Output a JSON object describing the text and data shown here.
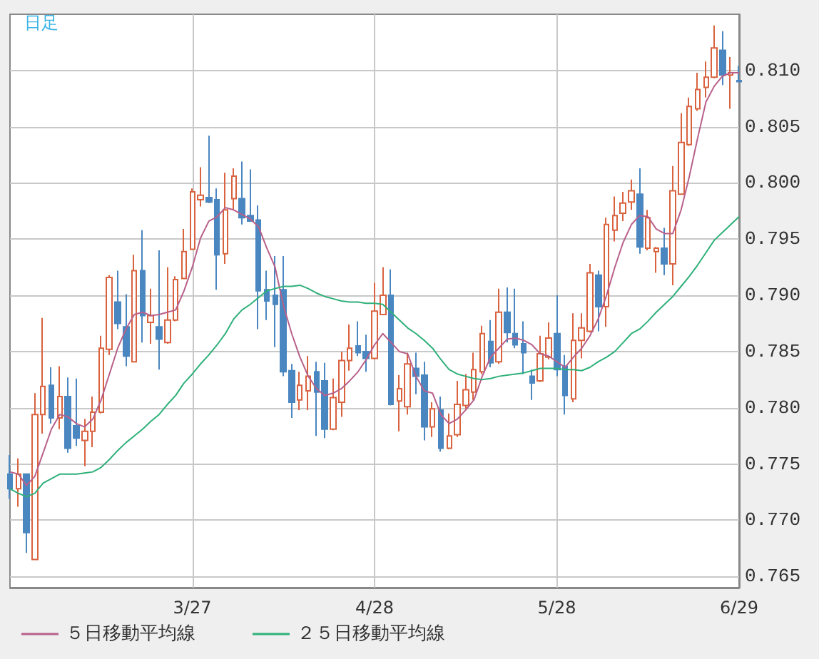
{
  "chart_data": {
    "type": "candlestick",
    "title": "日足",
    "categories": [
      null,
      null,
      null,
      null,
      null,
      null,
      null,
      null,
      null,
      null,
      null,
      null,
      null,
      null,
      null,
      null,
      null,
      null,
      null,
      null,
      null,
      null,
      "3/27",
      null,
      null,
      null,
      null,
      null,
      null,
      null,
      null,
      null,
      null,
      null,
      null,
      null,
      null,
      null,
      null,
      null,
      null,
      null,
      null,
      null,
      "4/28",
      null,
      null,
      null,
      null,
      null,
      null,
      null,
      null,
      null,
      null,
      null,
      null,
      null,
      null,
      null,
      null,
      null,
      null,
      null,
      null,
      null,
      "5/28",
      null,
      null,
      null,
      null,
      null,
      null,
      null,
      null,
      null,
      null,
      null,
      null,
      null,
      null,
      null,
      null,
      null,
      null,
      null,
      null,
      null,
      "6/29"
    ],
    "series": [
      {
        "type": "candlestick",
        "colors": [
          "#4a87c0",
          "#d9623f",
          "#4a87c0",
          "#d9623f",
          "#d9623f",
          "#4a87c0",
          "#d9623f",
          "#4a87c0",
          "#4a87c0",
          "#d9623f",
          "#d9623f",
          "#d9623f",
          "#d9623f",
          "#4a87c0",
          "#4a87c0",
          "#d9623f",
          "#4a87c0",
          "#d9623f",
          "#4a87c0",
          "#d9623f",
          "#d9623f",
          "#d9623f",
          "#d9623f",
          "#d9623f",
          "#4a87c0",
          "#4a87c0",
          "#d9623f",
          "#d9623f",
          "#4a87c0",
          "#4a87c0",
          "#4a87c0",
          "#4a87c0",
          "#4a87c0",
          "#4a87c0",
          "#4a87c0",
          "#d9623f",
          "#d9623f",
          "#4a87c0",
          "#4a87c0",
          "#d9623f",
          "#d9623f",
          "#d9623f",
          "#4a87c0",
          "#4a87c0",
          "#d9623f",
          "#d9623f",
          "#4a87c0",
          "#d9623f",
          "#d9623f",
          "#4a87c0",
          "#4a87c0",
          "#d9623f",
          "#4a87c0",
          "#d9623f",
          "#d9623f",
          "#d9623f",
          "#d9623f",
          "#d9623f",
          "#4a87c0",
          "#d9623f",
          "#4a87c0",
          "#4a87c0",
          "#4a87c0",
          "#4a87c0",
          "#d9623f",
          "#d9623f",
          "#4a87c0",
          "#4a87c0",
          "#d9623f",
          "#d9623f",
          "#d9623f",
          "#4a87c0",
          "#d9623f",
          "#d9623f",
          "#d9623f",
          "#d9623f",
          "#4a87c0",
          "#d9623f",
          "#d9623f",
          "#4a87c0",
          "#d9623f",
          "#d9623f",
          "#d9623f",
          "#d9623f",
          "#d9623f",
          "#d9623f",
          "#4a87c0",
          "#d9623f",
          "#4a87c0"
        ],
        "ohlc": [
          [
            0.7741,
            0.7758,
            0.7719,
            0.7728
          ],
          [
            0.7728,
            0.7755,
            0.7712,
            0.7741
          ],
          [
            0.7741,
            0.7741,
            0.7671,
            0.7689
          ],
          [
            0.7665,
            0.7813,
            0.7665,
            0.7794
          ],
          [
            0.7794,
            0.788,
            0.7777,
            0.7819
          ],
          [
            0.782,
            0.7836,
            0.7786,
            0.7791
          ],
          [
            0.7791,
            0.7837,
            0.7781,
            0.781
          ],
          [
            0.781,
            0.7827,
            0.776,
            0.7764
          ],
          [
            0.7784,
            0.7826,
            0.7766,
            0.7773
          ],
          [
            0.7771,
            0.779,
            0.7748,
            0.7779
          ],
          [
            0.7779,
            0.781,
            0.7765,
            0.7796
          ],
          [
            0.7796,
            0.7864,
            0.7795,
            0.7853
          ],
          [
            0.7852,
            0.7918,
            0.7847,
            0.7916
          ],
          [
            0.7894,
            0.7922,
            0.787,
            0.7875
          ],
          [
            0.7872,
            0.7901,
            0.7837,
            0.7846
          ],
          [
            0.7841,
            0.7936,
            0.7841,
            0.7922
          ],
          [
            0.7922,
            0.7958,
            0.7858,
            0.7882
          ],
          [
            0.7876,
            0.7906,
            0.7857,
            0.7882
          ],
          [
            0.7872,
            0.794,
            0.7834,
            0.7861
          ],
          [
            0.7858,
            0.7925,
            0.7857,
            0.7878
          ],
          [
            0.7878,
            0.7917,
            0.7877,
            0.7914
          ],
          [
            0.7915,
            0.7959,
            0.7915,
            0.7939
          ],
          [
            0.7941,
            0.7995,
            0.7941,
            0.7992
          ],
          [
            0.7985,
            0.8014,
            0.7979,
            0.7989
          ],
          [
            0.7987,
            0.8042,
            0.7982,
            0.7983
          ],
          [
            0.7985,
            0.7995,
            0.7905,
            0.7936
          ],
          [
            0.7937,
            0.8009,
            0.7928,
            0.7976
          ],
          [
            0.7986,
            0.8013,
            0.7976,
            0.8006
          ],
          [
            0.7986,
            0.8019,
            0.7963,
            0.7969
          ],
          [
            0.7971,
            0.8012,
            0.7966,
            0.7966
          ],
          [
            0.7967,
            0.798,
            0.787,
            0.7904
          ],
          [
            0.7905,
            0.7922,
            0.7878,
            0.7895
          ],
          [
            0.79,
            0.7935,
            0.7854,
            0.7892
          ],
          [
            0.7905,
            0.7935,
            0.7828,
            0.7832
          ],
          [
            0.7833,
            0.7839,
            0.7791,
            0.7805
          ],
          [
            0.7807,
            0.7832,
            0.7798,
            0.782
          ],
          [
            0.7815,
            0.7846,
            0.7798,
            0.7828
          ],
          [
            0.7832,
            0.7841,
            0.7775,
            0.7814
          ],
          [
            0.7824,
            0.784,
            0.7773,
            0.7781
          ],
          [
            0.7781,
            0.7826,
            0.778,
            0.7809
          ],
          [
            0.7805,
            0.785,
            0.7792,
            0.7842
          ],
          [
            0.7842,
            0.7874,
            0.7833,
            0.7853
          ],
          [
            0.7855,
            0.7877,
            0.7846,
            0.7849
          ],
          [
            0.785,
            0.7865,
            0.7832,
            0.7844
          ],
          [
            0.7844,
            0.7911,
            0.7843,
            0.7886
          ],
          [
            0.7883,
            0.7925,
            0.7883,
            0.79
          ],
          [
            0.79,
            0.7923,
            0.7802,
            0.7803
          ],
          [
            0.7806,
            0.7829,
            0.7779,
            0.7817
          ],
          [
            0.7801,
            0.7849,
            0.7794,
            0.7839
          ],
          [
            0.7835,
            0.7849,
            0.7812,
            0.7828
          ],
          [
            0.7829,
            0.7841,
            0.7771,
            0.7783
          ],
          [
            0.7783,
            0.7805,
            0.7774,
            0.7799
          ],
          [
            0.7798,
            0.781,
            0.7761,
            0.7764
          ],
          [
            0.7764,
            0.7795,
            0.7763,
            0.7775
          ],
          [
            0.7776,
            0.7824,
            0.7774,
            0.7803
          ],
          [
            0.7802,
            0.783,
            0.7799,
            0.7816
          ],
          [
            0.7814,
            0.7849,
            0.7807,
            0.7834
          ],
          [
            0.7832,
            0.7873,
            0.783,
            0.7866
          ],
          [
            0.7859,
            0.7878,
            0.7836,
            0.784
          ],
          [
            0.7841,
            0.7906,
            0.7839,
            0.7885
          ],
          [
            0.7885,
            0.7907,
            0.7858,
            0.7867
          ],
          [
            0.7866,
            0.7906,
            0.7853,
            0.7856
          ],
          [
            0.7857,
            0.7877,
            0.783,
            0.7849
          ],
          [
            0.7828,
            0.7834,
            0.7807,
            0.7822
          ],
          [
            0.7824,
            0.7864,
            0.7823,
            0.7848
          ],
          [
            0.7845,
            0.7876,
            0.7843,
            0.7862
          ],
          [
            0.7866,
            0.79,
            0.7828,
            0.7834
          ],
          [
            0.7837,
            0.7847,
            0.7794,
            0.7811
          ],
          [
            0.7808,
            0.7884,
            0.7805,
            0.786
          ],
          [
            0.786,
            0.7884,
            0.7844,
            0.7871
          ],
          [
            0.7868,
            0.7928,
            0.7867,
            0.792
          ],
          [
            0.7918,
            0.7922,
            0.7868,
            0.789
          ],
          [
            0.789,
            0.7969,
            0.7872,
            0.7963
          ],
          [
            0.7958,
            0.7988,
            0.7948,
            0.7971
          ],
          [
            0.7973,
            0.7992,
            0.7966,
            0.7982
          ],
          [
            0.7983,
            0.8003,
            0.7976,
            0.7993
          ],
          [
            0.799,
            0.8013,
            0.7937,
            0.7943
          ],
          [
            0.7942,
            0.7976,
            0.794,
            0.7969
          ],
          [
            0.7939,
            0.7943,
            0.792,
            0.7942
          ],
          [
            0.7942,
            0.796,
            0.7918,
            0.7928
          ],
          [
            0.7928,
            0.8015,
            0.7909,
            0.7993
          ],
          [
            0.799,
            0.8062,
            0.799,
            0.8036
          ],
          [
            0.8034,
            0.8076,
            0.8033,
            0.8068
          ],
          [
            0.8066,
            0.8098,
            0.8064,
            0.8083
          ],
          [
            0.8085,
            0.8108,
            0.8076,
            0.8094
          ],
          [
            0.8094,
            0.814,
            0.8093,
            0.812
          ],
          [
            0.8118,
            0.8135,
            0.8087,
            0.8096
          ],
          [
            0.8096,
            0.8112,
            0.8066,
            0.8098
          ],
          [
            0.8091,
            0.8104,
            0.809,
            0.809
          ]
        ]
      },
      {
        "type": "line",
        "name": "５日移動平均線",
        "color": "#b8608a",
        "values": [
          0.7743,
          0.7741,
          0.7731,
          0.7739,
          0.776,
          0.7781,
          0.7794,
          0.7792,
          0.7786,
          0.7783,
          0.779,
          0.7807,
          0.783,
          0.7853,
          0.787,
          0.7883,
          0.7885,
          0.7882,
          0.7883,
          0.7885,
          0.7887,
          0.7904,
          0.7925,
          0.7951,
          0.7966,
          0.797,
          0.7978,
          0.7976,
          0.7972,
          0.7968,
          0.7961,
          0.7942,
          0.7925,
          0.7891,
          0.7866,
          0.7845,
          0.7828,
          0.7817,
          0.7811,
          0.7813,
          0.7817,
          0.7824,
          0.7832,
          0.7843,
          0.7856,
          0.7866,
          0.7858,
          0.785,
          0.7848,
          0.7828,
          0.7815,
          0.7813,
          0.7794,
          0.7786,
          0.779,
          0.7798,
          0.7807,
          0.7828,
          0.7845,
          0.7853,
          0.7861,
          0.7862,
          0.786,
          0.7856,
          0.7848,
          0.7846,
          0.7841,
          0.7836,
          0.7845,
          0.7853,
          0.7864,
          0.7879,
          0.79,
          0.7925,
          0.7947,
          0.7963,
          0.7971,
          0.797,
          0.7959,
          0.7955,
          0.7955,
          0.7976,
          0.8006,
          0.804,
          0.8072,
          0.8086,
          0.8095,
          0.8098,
          0.8098
        ]
      },
      {
        "type": "line",
        "name": "２５日移動平均線",
        "color": "#2fb07a",
        "values": [
          0.7728,
          0.7724,
          0.7721,
          0.7724,
          0.7733,
          0.7737,
          0.7741,
          0.7741,
          0.7741,
          0.7742,
          0.7743,
          0.7747,
          0.7754,
          0.7762,
          0.7769,
          0.7775,
          0.7781,
          0.7788,
          0.7794,
          0.7803,
          0.7811,
          0.7822,
          0.783,
          0.7839,
          0.7847,
          0.7856,
          0.7866,
          0.7879,
          0.7887,
          0.7892,
          0.7898,
          0.7904,
          0.7906,
          0.7908,
          0.7908,
          0.7909,
          0.7906,
          0.7902,
          0.7899,
          0.7897,
          0.7895,
          0.7894,
          0.7894,
          0.7893,
          0.7893,
          0.7892,
          0.7885,
          0.7878,
          0.7871,
          0.7866,
          0.786,
          0.7853,
          0.7843,
          0.7834,
          0.783,
          0.7828,
          0.7826,
          0.7825,
          0.7826,
          0.7828,
          0.7829,
          0.783,
          0.7831,
          0.7833,
          0.7835,
          0.7835,
          0.7835,
          0.7834,
          0.7834,
          0.7833,
          0.7836,
          0.7841,
          0.7845,
          0.785,
          0.7858,
          0.7866,
          0.787,
          0.7877,
          0.7885,
          0.7892,
          0.7899,
          0.7908,
          0.7917,
          0.7927,
          0.7938,
          0.7949,
          0.7956,
          0.7963,
          0.797
        ]
      }
    ],
    "ylim": [
      0.764,
      0.815
    ],
    "yticks": [
      {
        "value": 0.765,
        "label": "0.765"
      },
      {
        "value": 0.77,
        "label": "0.770"
      },
      {
        "value": 0.775,
        "label": "0.775"
      },
      {
        "value": 0.78,
        "label": "0.780"
      },
      {
        "value": 0.785,
        "label": "0.785"
      },
      {
        "value": 0.79,
        "label": "0.790"
      },
      {
        "value": 0.795,
        "label": "0.795"
      },
      {
        "value": 0.8,
        "label": "0.800"
      },
      {
        "value": 0.805,
        "label": "0.805"
      },
      {
        "value": 0.81,
        "label": "0.810"
      }
    ],
    "grid": true,
    "legend": "bottom left",
    "marker": "none",
    "line_style": "solid"
  }
}
